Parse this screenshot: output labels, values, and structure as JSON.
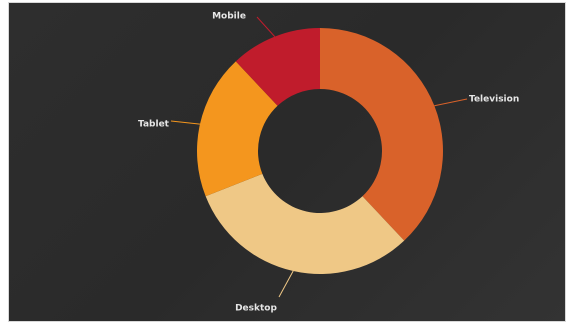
{
  "chart_data": {
    "type": "pie",
    "variant": "donut",
    "title": "",
    "categories": [
      "Television",
      "Desktop",
      "Tablet",
      "Mobile"
    ],
    "values": [
      38,
      31,
      19,
      12
    ],
    "unit": "percent (estimated)",
    "colors": {
      "Television": "#d9622a",
      "Desktop": "#efc886",
      "Tablet": "#f4961e",
      "Mobile": "#c01c2c"
    },
    "start_angle_deg": 0,
    "direction": "clockwise",
    "legend": "none",
    "labels_position": "outside-with-leader-lines"
  },
  "background_color": "#2d2d2d",
  "label_color": "#e6e6e6"
}
